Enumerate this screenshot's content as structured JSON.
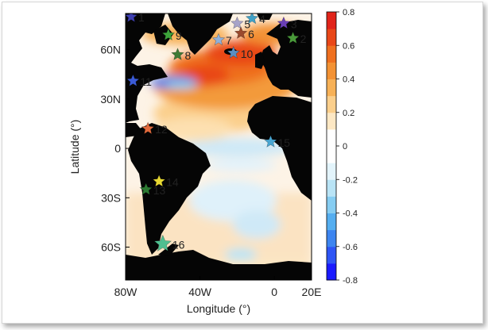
{
  "map": {
    "x_axis_label": "Longitude  (°)",
    "y_axis_label": "Latitude  (°)",
    "x_ticks": [
      {
        "value": -80,
        "label": "80W"
      },
      {
        "value": -40,
        "label": "40W"
      },
      {
        "value": 0,
        "label": "0"
      },
      {
        "value": 20,
        "label": "20E"
      }
    ],
    "y_ticks": [
      {
        "value": 60,
        "label": "60N"
      },
      {
        "value": 30,
        "label": "30N"
      },
      {
        "value": 0,
        "label": "0"
      },
      {
        "value": -30,
        "label": "30S"
      },
      {
        "value": -60,
        "label": "60S"
      }
    ],
    "extent": {
      "lon_min": -80,
      "lon_max": 20,
      "lat_min": -80,
      "lat_max": 82
    },
    "colorbar": {
      "ticks": [
        "0.8",
        "0.6",
        "0.4",
        "0.2",
        "0",
        "-0.2",
        "-0.4",
        "-0.6",
        "-0.8"
      ],
      "min": -0.8,
      "max": 0.8,
      "colors": [
        "#1a1aff",
        "#2e55f5",
        "#3d85f0",
        "#55aef0",
        "#86cdf2",
        "#b9e4f6",
        "#e3f4fb",
        "#ffffff",
        "#ffffff",
        "#fde8c4",
        "#fbcf8c",
        "#f7b157",
        "#f39234",
        "#ef701f",
        "#e94718",
        "#e1241a"
      ]
    },
    "sites": [
      {
        "label": "1",
        "lon": -77,
        "lat": 80,
        "color": "#3e3fb0"
      },
      {
        "label": "2",
        "lon": 10,
        "lat": 67,
        "color": "#4a9a3a"
      },
      {
        "label": "3",
        "lon": 5,
        "lat": 76,
        "color": "#6a3fb5"
      },
      {
        "label": "4",
        "lon": -12,
        "lat": 79,
        "color": "#3fa0c6"
      },
      {
        "label": "5",
        "lon": -20,
        "lat": 76,
        "color": "#a7a3c9"
      },
      {
        "label": "6",
        "lon": -18,
        "lat": 70,
        "color": "#9b4a2d"
      },
      {
        "label": "7",
        "lon": -30,
        "lat": 66,
        "color": "#8fb0da"
      },
      {
        "label": "8",
        "lon": -52,
        "lat": 57,
        "color": "#3f7a36"
      },
      {
        "label": "9",
        "lon": -57,
        "lat": 69,
        "color": "#3da33b"
      },
      {
        "label": "10",
        "lon": -22,
        "lat": 58,
        "color": "#5b8fc2"
      },
      {
        "label": "11",
        "lon": -76,
        "lat": 41,
        "color": "#3b5bd6"
      },
      {
        "label": "12",
        "lon": -68,
        "lat": 12,
        "color": "#e26a3c"
      },
      {
        "label": "13",
        "lon": -69,
        "lat": -25,
        "color": "#2c7a32"
      },
      {
        "label": "14",
        "lon": -62,
        "lat": -20,
        "color": "#e6d832"
      },
      {
        "label": "15",
        "lon": -2,
        "lat": 4,
        "color": "#49a6d2"
      },
      {
        "label": "16",
        "lon": -60,
        "lat": -58,
        "color": "#4fbf90"
      }
    ]
  }
}
